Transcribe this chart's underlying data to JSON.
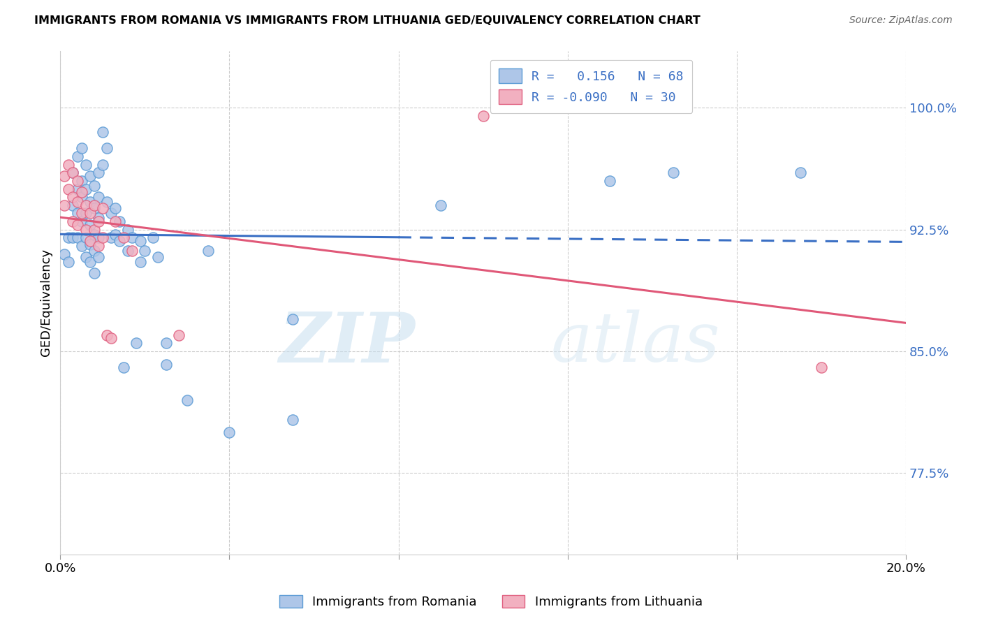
{
  "title": "IMMIGRANTS FROM ROMANIA VS IMMIGRANTS FROM LITHUANIA GED/EQUIVALENCY CORRELATION CHART",
  "source": "Source: ZipAtlas.com",
  "ylabel": "GED/Equivalency",
  "yticks": [
    0.775,
    0.85,
    0.925,
    1.0
  ],
  "ytick_labels": [
    "77.5%",
    "85.0%",
    "92.5%",
    "100.0%"
  ],
  "xlim": [
    0.0,
    0.2
  ],
  "ylim": [
    0.725,
    1.035
  ],
  "romania_color": "#aec6e8",
  "lithuania_color": "#f2b0c0",
  "romania_edge": "#5b9bd5",
  "lithuania_edge": "#e06080",
  "trend_romania_color": "#3a6fc4",
  "trend_lithuania_color": "#e05878",
  "watermark_zip": "ZIP",
  "watermark_atlas": "atlas",
  "romania_scatter": [
    [
      0.001,
      0.91
    ],
    [
      0.002,
      0.905
    ],
    [
      0.002,
      0.92
    ],
    [
      0.003,
      0.96
    ],
    [
      0.003,
      0.94
    ],
    [
      0.003,
      0.92
    ],
    [
      0.004,
      0.97
    ],
    [
      0.004,
      0.95
    ],
    [
      0.004,
      0.935
    ],
    [
      0.004,
      0.92
    ],
    [
      0.005,
      0.975
    ],
    [
      0.005,
      0.955
    ],
    [
      0.005,
      0.945
    ],
    [
      0.005,
      0.93
    ],
    [
      0.005,
      0.915
    ],
    [
      0.006,
      0.965
    ],
    [
      0.006,
      0.95
    ],
    [
      0.006,
      0.935
    ],
    [
      0.006,
      0.92
    ],
    [
      0.006,
      0.908
    ],
    [
      0.007,
      0.958
    ],
    [
      0.007,
      0.942
    ],
    [
      0.007,
      0.928
    ],
    [
      0.007,
      0.916
    ],
    [
      0.007,
      0.905
    ],
    [
      0.008,
      0.952
    ],
    [
      0.008,
      0.938
    ],
    [
      0.008,
      0.922
    ],
    [
      0.008,
      0.912
    ],
    [
      0.008,
      0.898
    ],
    [
      0.009,
      0.96
    ],
    [
      0.009,
      0.945
    ],
    [
      0.009,
      0.932
    ],
    [
      0.009,
      0.92
    ],
    [
      0.009,
      0.908
    ],
    [
      0.01,
      0.985
    ],
    [
      0.01,
      0.965
    ],
    [
      0.011,
      0.975
    ],
    [
      0.011,
      0.942
    ],
    [
      0.012,
      0.935
    ],
    [
      0.012,
      0.92
    ],
    [
      0.013,
      0.938
    ],
    [
      0.013,
      0.922
    ],
    [
      0.014,
      0.93
    ],
    [
      0.014,
      0.918
    ],
    [
      0.015,
      0.84
    ],
    [
      0.016,
      0.925
    ],
    [
      0.016,
      0.912
    ],
    [
      0.017,
      0.92
    ],
    [
      0.018,
      0.855
    ],
    [
      0.019,
      0.918
    ],
    [
      0.019,
      0.905
    ],
    [
      0.02,
      0.912
    ],
    [
      0.022,
      0.92
    ],
    [
      0.023,
      0.908
    ],
    [
      0.025,
      0.855
    ],
    [
      0.025,
      0.842
    ],
    [
      0.03,
      0.82
    ],
    [
      0.035,
      0.912
    ],
    [
      0.04,
      0.8
    ],
    [
      0.055,
      0.87
    ],
    [
      0.055,
      0.808
    ],
    [
      0.09,
      0.94
    ],
    [
      0.13,
      0.955
    ],
    [
      0.145,
      0.96
    ],
    [
      0.175,
      0.96
    ]
  ],
  "lithuania_scatter": [
    [
      0.001,
      0.958
    ],
    [
      0.001,
      0.94
    ],
    [
      0.002,
      0.965
    ],
    [
      0.002,
      0.95
    ],
    [
      0.003,
      0.96
    ],
    [
      0.003,
      0.945
    ],
    [
      0.003,
      0.93
    ],
    [
      0.004,
      0.955
    ],
    [
      0.004,
      0.942
    ],
    [
      0.004,
      0.928
    ],
    [
      0.005,
      0.948
    ],
    [
      0.005,
      0.935
    ],
    [
      0.006,
      0.94
    ],
    [
      0.006,
      0.925
    ],
    [
      0.007,
      0.935
    ],
    [
      0.007,
      0.918
    ],
    [
      0.008,
      0.94
    ],
    [
      0.008,
      0.925
    ],
    [
      0.009,
      0.93
    ],
    [
      0.009,
      0.915
    ],
    [
      0.01,
      0.938
    ],
    [
      0.01,
      0.92
    ],
    [
      0.011,
      0.86
    ],
    [
      0.012,
      0.858
    ],
    [
      0.013,
      0.93
    ],
    [
      0.015,
      0.92
    ],
    [
      0.017,
      0.912
    ],
    [
      0.028,
      0.86
    ],
    [
      0.1,
      0.995
    ],
    [
      0.18,
      0.84
    ]
  ]
}
